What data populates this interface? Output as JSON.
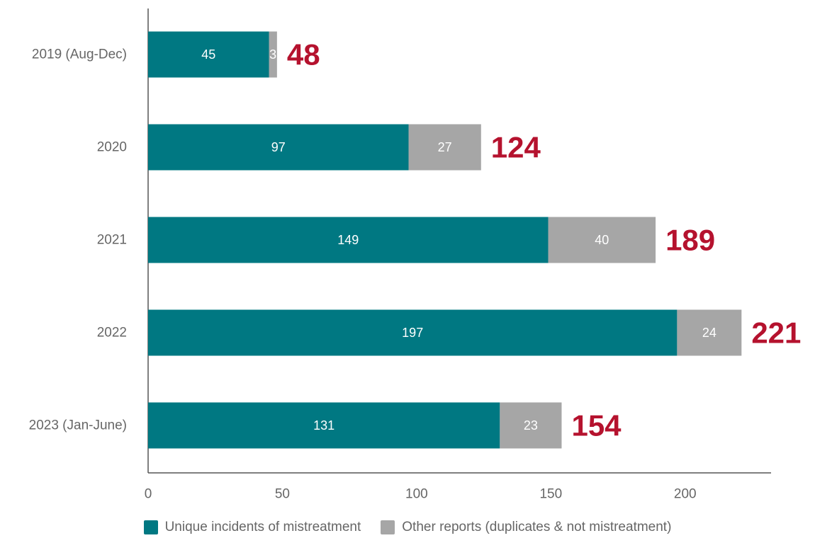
{
  "chart_data": {
    "type": "bar",
    "orientation": "horizontal",
    "stacked": true,
    "title": "",
    "xlabel": "",
    "ylabel": "",
    "categories": [
      "2019 (Aug-Dec)",
      "2020",
      "2021",
      "2022",
      "2023 (Jan-June)"
    ],
    "series": [
      {
        "name": "Unique incidents of mistreatment",
        "values": [
          45,
          97,
          149,
          197,
          131
        ],
        "color": "#007882"
      },
      {
        "name": "Other reports (duplicates & not mistreatment)",
        "values": [
          3,
          27,
          40,
          24,
          23
        ],
        "color": "#a6a6a6"
      }
    ],
    "totals": [
      48,
      124,
      189,
      221,
      154
    ],
    "total_label_color": "#b5122e",
    "xlim": [
      0,
      232
    ],
    "xticks": [
      0,
      50,
      100,
      150,
      200
    ],
    "grid": false,
    "legend_position": "bottom"
  }
}
